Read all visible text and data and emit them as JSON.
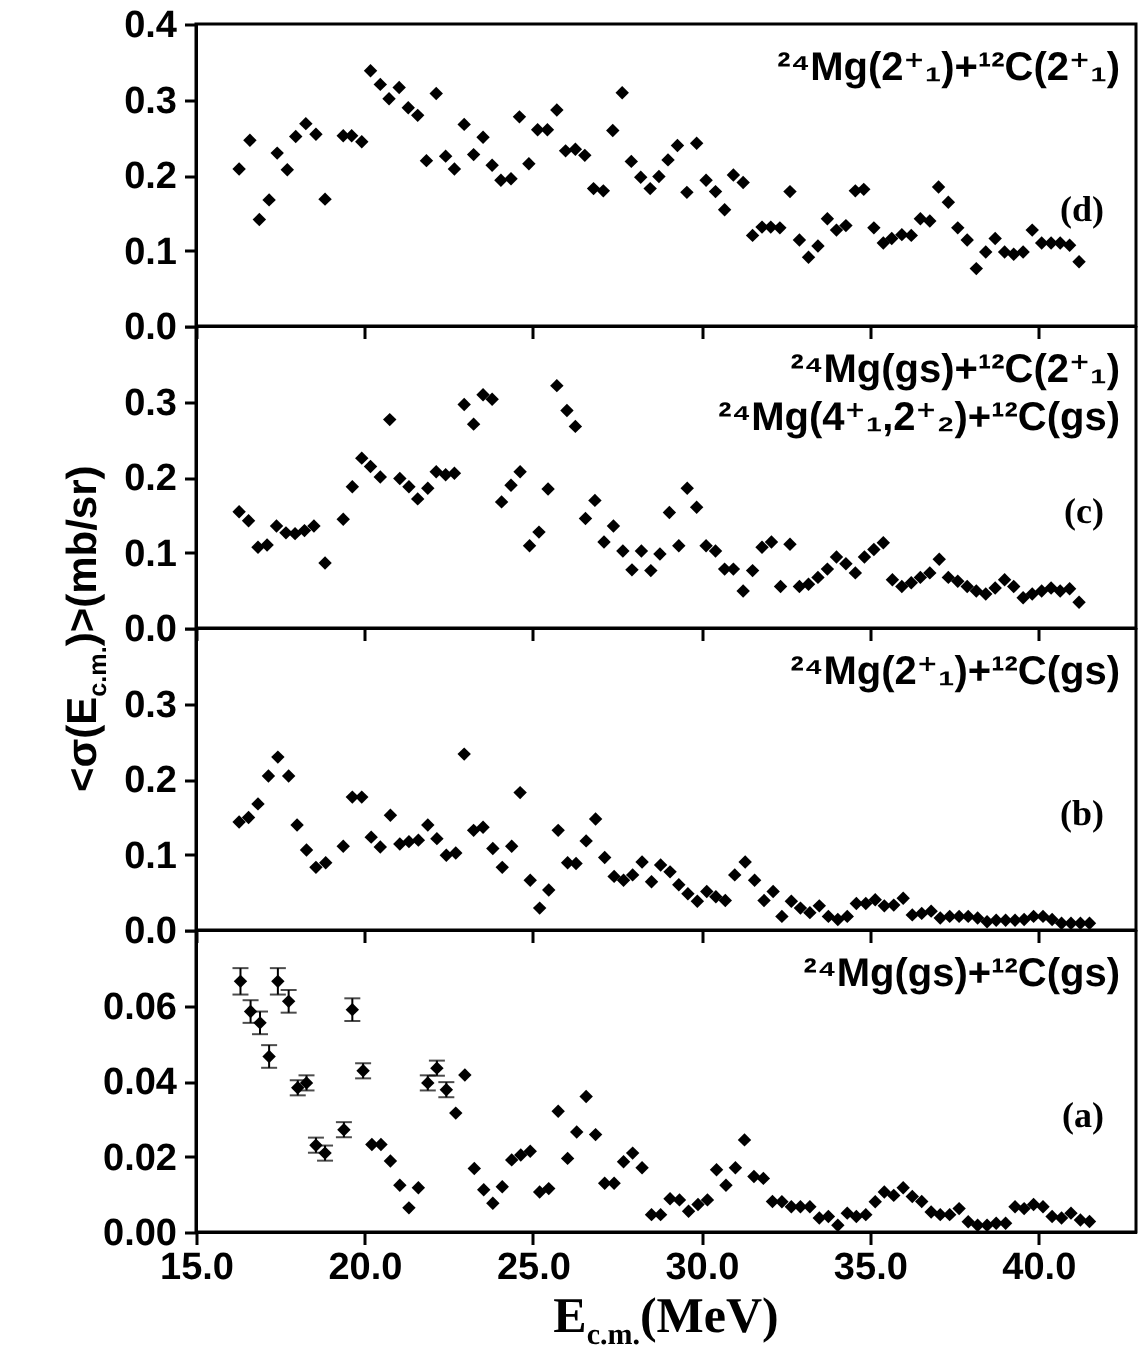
{
  "chart_data": [
    {
      "type": "scatter",
      "color": "#000000",
      "marker": "diamond",
      "tick_labels": "y",
      "annotations": [
        "²⁴Mg(2⁺₁)+¹²C(2⁺₁)",
        "(d)"
      ],
      "xlim": [
        15,
        42.9
      ],
      "xticks": [
        {
          "value": 15,
          "label": null
        },
        {
          "value": 20,
          "label": null
        },
        {
          "value": 25,
          "label": null
        },
        {
          "value": 30,
          "label": null
        },
        {
          "value": 35,
          "label": null
        },
        {
          "value": 40,
          "label": null
        }
      ],
      "ylim": [
        0,
        0.4
      ],
      "yticks": [
        {
          "value": 0,
          "label": "0.0"
        },
        0.1,
        0.2,
        0.3,
        0.4
      ],
      "x": [
        16.28,
        16.6,
        16.88,
        17.17,
        17.41,
        17.71,
        17.96,
        18.26,
        18.56,
        18.83,
        19.37,
        19.62,
        19.92,
        20.18,
        20.47,
        20.73,
        21.03,
        21.3,
        21.58,
        21.84,
        22.13,
        22.41,
        22.67,
        22.96,
        23.24,
        23.52,
        23.79,
        24.05,
        24.35,
        24.6,
        24.88,
        25.14,
        25.43,
        25.71,
        25.97,
        26.26,
        26.54,
        26.8,
        27.09,
        27.37,
        27.65,
        27.92,
        28.2,
        28.48,
        28.74,
        29.01,
        29.29,
        29.57,
        29.86,
        30.14,
        30.42,
        30.69,
        30.95,
        31.24,
        31.52,
        31.8,
        32.06,
        32.33,
        32.63,
        32.91,
        33.18,
        33.46,
        33.74,
        34.01,
        34.29,
        34.57,
        34.82,
        35.12,
        35.4,
        35.65,
        35.95,
        36.23,
        36.5,
        36.78,
        37.04,
        37.33,
        37.61,
        37.89,
        38.16,
        38.44,
        38.72,
        39.0,
        39.27,
        39.55,
        39.82,
        40.1,
        40.38,
        40.65,
        40.93,
        41.21
      ],
      "values": [
        0.208,
        0.246,
        0.141,
        0.167,
        0.229,
        0.207,
        0.251,
        0.268,
        0.254,
        0.168,
        0.252,
        0.252,
        0.244,
        0.338,
        0.32,
        0.301,
        0.316,
        0.289,
        0.279,
        0.219,
        0.308,
        0.225,
        0.208,
        0.267,
        0.227,
        0.25,
        0.213,
        0.193,
        0.195,
        0.277,
        0.215,
        0.26,
        0.26,
        0.286,
        0.232,
        0.234,
        0.226,
        0.182,
        0.179,
        0.259,
        0.309,
        0.218,
        0.197,
        0.182,
        0.198,
        0.22,
        0.239,
        0.177,
        0.242,
        0.193,
        0.178,
        0.154,
        0.2,
        0.19,
        0.12,
        0.131,
        0.131,
        0.13,
        0.178,
        0.114,
        0.091,
        0.106,
        0.142,
        0.127,
        0.133,
        0.179,
        0.181,
        0.13,
        0.11,
        0.116,
        0.121,
        0.12,
        0.142,
        0.139,
        0.184,
        0.164,
        0.13,
        0.114,
        0.076,
        0.098,
        0.116,
        0.098,
        0.095,
        0.098,
        0.127,
        0.11,
        0.11,
        0.11,
        0.107,
        0.085
      ]
    },
    {
      "type": "scatter",
      "color": "#000000",
      "marker": "diamond",
      "tick_labels": "y",
      "ylabel": "<σ(E$_{c.m.}$)>(mb/sr)",
      "annotations": [
        "²⁴Mg(gs)+¹²C(2⁺₁)",
        "²⁴Mg(4⁺₁,2⁺₂)+¹²C(gs)",
        "(c)"
      ],
      "xlim": [
        15,
        42.9
      ],
      "xticks": [
        {
          "value": 15,
          "label": null
        },
        {
          "value": 20,
          "label": null
        },
        {
          "value": 25,
          "label": null
        },
        {
          "value": 30,
          "label": null
        },
        {
          "value": 35,
          "label": null
        },
        {
          "value": 40,
          "label": null
        }
      ],
      "ylim": [
        0,
        0.4
      ],
      "yticks": [
        {
          "value": 0,
          "label": "0.0"
        },
        0.1,
        0.2,
        0.3,
        {
          "value": 0.4,
          "label": null
        }
      ],
      "x": [
        16.28,
        16.56,
        16.84,
        17.11,
        17.39,
        17.67,
        17.94,
        18.22,
        18.5,
        18.83,
        19.37,
        19.64,
        19.92,
        20.18,
        20.47,
        20.75,
        21.05,
        21.32,
        21.58,
        21.88,
        22.13,
        22.41,
        22.67,
        22.96,
        23.24,
        23.52,
        23.79,
        24.07,
        24.35,
        24.62,
        24.9,
        25.18,
        25.45,
        25.71,
        26.01,
        26.26,
        26.56,
        26.84,
        27.11,
        27.39,
        27.67,
        27.94,
        28.22,
        28.5,
        28.77,
        29.05,
        29.33,
        29.58,
        29.86,
        30.14,
        30.42,
        30.69,
        30.95,
        31.24,
        31.52,
        31.8,
        32.08,
        32.35,
        32.63,
        32.91,
        33.18,
        33.46,
        33.74,
        34.01,
        34.29,
        34.57,
        34.84,
        35.12,
        35.4,
        35.67,
        35.95,
        36.23,
        36.5,
        36.78,
        37.06,
        37.33,
        37.61,
        37.89,
        38.16,
        38.44,
        38.72,
        39.0,
        39.27,
        39.55,
        39.82,
        40.1,
        40.38,
        40.65,
        40.93,
        41.21
      ],
      "values": [
        0.154,
        0.142,
        0.107,
        0.11,
        0.135,
        0.126,
        0.125,
        0.129,
        0.135,
        0.086,
        0.144,
        0.187,
        0.225,
        0.214,
        0.2,
        0.276,
        0.198,
        0.187,
        0.171,
        0.185,
        0.207,
        0.203,
        0.205,
        0.296,
        0.27,
        0.309,
        0.303,
        0.167,
        0.189,
        0.207,
        0.109,
        0.127,
        0.184,
        0.321,
        0.288,
        0.267,
        0.145,
        0.169,
        0.114,
        0.135,
        0.102,
        0.077,
        0.102,
        0.076,
        0.098,
        0.153,
        0.109,
        0.185,
        0.16,
        0.109,
        0.102,
        0.078,
        0.078,
        0.049,
        0.076,
        0.107,
        0.114,
        0.055,
        0.111,
        0.055,
        0.058,
        0.067,
        0.078,
        0.094,
        0.085,
        0.073,
        0.094,
        0.104,
        0.113,
        0.064,
        0.055,
        0.06,
        0.067,
        0.073,
        0.091,
        0.067,
        0.062,
        0.055,
        0.049,
        0.045,
        0.053,
        0.064,
        0.055,
        0.04,
        0.045,
        0.049,
        0.053,
        0.049,
        0.052,
        0.034
      ]
    },
    {
      "type": "scatter",
      "color": "#000000",
      "marker": "diamond",
      "tick_labels": "y",
      "annotations": [
        "²⁴Mg(2⁺₁)+¹²C(gs)",
        "(b)"
      ],
      "xlim": [
        15,
        42.9
      ],
      "xticks": [
        {
          "value": 15,
          "label": null
        },
        {
          "value": 20,
          "label": null
        },
        {
          "value": 25,
          "label": null
        },
        {
          "value": 30,
          "label": null
        },
        {
          "value": 35,
          "label": null
        },
        {
          "value": 40,
          "label": null
        }
      ],
      "ylim": [
        0,
        0.4
      ],
      "yticks": [
        {
          "value": 0,
          "label": "0.0"
        },
        0.1,
        0.2,
        0.3,
        {
          "value": 0.4,
          "label": null
        }
      ],
      "x": [
        16.28,
        16.56,
        16.84,
        17.15,
        17.43,
        17.75,
        18.0,
        18.28,
        18.56,
        18.85,
        19.37,
        19.64,
        19.92,
        20.2,
        20.47,
        20.77,
        21.05,
        21.32,
        21.6,
        21.88,
        22.15,
        22.43,
        22.71,
        22.96,
        23.24,
        23.52,
        23.81,
        24.09,
        24.37,
        24.62,
        24.92,
        25.2,
        25.47,
        25.75,
        26.03,
        26.28,
        26.58,
        26.86,
        27.13,
        27.41,
        27.69,
        27.96,
        28.24,
        28.52,
        28.79,
        29.07,
        29.33,
        29.6,
        29.88,
        30.16,
        30.43,
        30.71,
        30.99,
        31.3,
        31.58,
        31.86,
        32.13,
        32.39,
        32.67,
        32.94,
        33.22,
        33.5,
        33.77,
        34.05,
        34.33,
        34.6,
        34.88,
        35.16,
        35.43,
        35.71,
        35.99,
        36.26,
        36.54,
        36.82,
        37.09,
        37.37,
        37.65,
        37.92,
        38.2,
        38.48,
        38.75,
        39.03,
        39.31,
        39.58,
        39.86,
        40.14,
        40.41,
        40.69,
        40.97,
        41.25,
        41.52
      ],
      "values": [
        0.143,
        0.149,
        0.167,
        0.204,
        0.229,
        0.204,
        0.139,
        0.106,
        0.083,
        0.089,
        0.111,
        0.176,
        0.176,
        0.123,
        0.11,
        0.152,
        0.114,
        0.117,
        0.119,
        0.139,
        0.121,
        0.099,
        0.102,
        0.233,
        0.132,
        0.136,
        0.108,
        0.083,
        0.111,
        0.182,
        0.066,
        0.029,
        0.053,
        0.132,
        0.089,
        0.088,
        0.118,
        0.147,
        0.096,
        0.071,
        0.066,
        0.073,
        0.09,
        0.064,
        0.086,
        0.077,
        0.06,
        0.048,
        0.038,
        0.051,
        0.044,
        0.039,
        0.073,
        0.09,
        0.066,
        0.039,
        0.051,
        0.018,
        0.038,
        0.029,
        0.023,
        0.032,
        0.018,
        0.014,
        0.018,
        0.035,
        0.035,
        0.04,
        0.032,
        0.033,
        0.042,
        0.02,
        0.022,
        0.025,
        0.016,
        0.018,
        0.018,
        0.018,
        0.016,
        0.011,
        0.013,
        0.013,
        0.013,
        0.014,
        0.018,
        0.018,
        0.014,
        0.009,
        0.009,
        0.009,
        0.009
      ]
    },
    {
      "type": "scatter",
      "color": "#000000",
      "marker": "diamond",
      "xlabel": "E$_{c.m.}$(MeV)",
      "annotations": [
        "²⁴Mg(gs)+¹²C(gs)",
        "(a)"
      ],
      "xlim": [
        15,
        42.9
      ],
      "xticks": [
        {
          "value": 15,
          "label": "15.0"
        },
        {
          "value": 20,
          "label": "20.0"
        },
        {
          "value": 25,
          "label": "25.0"
        },
        {
          "value": 30,
          "label": "30.0"
        },
        {
          "value": 35,
          "label": "35.0"
        },
        {
          "value": 40,
          "label": "40.0"
        }
      ],
      "ylim": [
        0,
        0.08
      ],
      "yticks": [
        {
          "value": 0,
          "label": "0.00"
        },
        {
          "value": 0.02,
          "label": "0.02"
        },
        {
          "value": 0.04,
          "label": "0.04"
        },
        {
          "value": 0.06,
          "label": "0.06"
        },
        {
          "value": 0.08,
          "label": null
        }
      ],
      "x": [
        16.32,
        16.62,
        16.9,
        17.17,
        17.43,
        17.75,
        18.02,
        18.28,
        18.56,
        18.83,
        19.39,
        19.64,
        19.96,
        20.22,
        20.49,
        20.77,
        21.05,
        21.32,
        21.6,
        21.88,
        22.15,
        22.43,
        22.71,
        22.98,
        23.26,
        23.54,
        23.81,
        24.09,
        24.37,
        24.64,
        24.92,
        25.2,
        25.47,
        25.75,
        26.03,
        26.3,
        26.58,
        26.86,
        27.13,
        27.41,
        27.69,
        27.96,
        28.24,
        28.52,
        28.79,
        29.07,
        29.35,
        29.62,
        29.9,
        30.18,
        30.45,
        30.73,
        31.01,
        31.28,
        31.56,
        31.84,
        32.11,
        32.39,
        32.67,
        32.94,
        33.22,
        33.5,
        33.77,
        34.05,
        34.33,
        34.6,
        34.88,
        35.16,
        35.43,
        35.71,
        35.99,
        36.26,
        36.54,
        36.82,
        37.09,
        37.37,
        37.65,
        37.92,
        38.2,
        38.48,
        38.75,
        39.03,
        39.31,
        39.58,
        39.86,
        40.14,
        40.41,
        40.69,
        40.97,
        41.25,
        41.52
      ],
      "values": [
        0.0664,
        0.0584,
        0.0554,
        0.0465,
        0.0664,
        0.0611,
        0.0382,
        0.0395,
        0.023,
        0.0209,
        0.0271,
        0.0589,
        0.0427,
        0.0232,
        0.0232,
        0.0188,
        0.0124,
        0.0064,
        0.0117,
        0.0395,
        0.0434,
        0.0377,
        0.0315,
        0.0416,
        0.0168,
        0.0112,
        0.0076,
        0.012,
        0.0191,
        0.0204,
        0.0214,
        0.0106,
        0.0115,
        0.032,
        0.0195,
        0.0265,
        0.0359,
        0.0258,
        0.0129,
        0.0129,
        0.0186,
        0.0209,
        0.017,
        0.0046,
        0.0046,
        0.0088,
        0.0085,
        0.0055,
        0.0073,
        0.0085,
        0.0165,
        0.0124,
        0.017,
        0.0244,
        0.0147,
        0.0142,
        0.0081,
        0.008,
        0.0067,
        0.0067,
        0.0067,
        0.0037,
        0.0041,
        0.0018,
        0.005,
        0.0041,
        0.0046,
        0.008,
        0.0106,
        0.0097,
        0.0117,
        0.0094,
        0.0081,
        0.0053,
        0.0046,
        0.0046,
        0.0062,
        0.0027,
        0.0018,
        0.0018,
        0.0023,
        0.0023,
        0.0067,
        0.0062,
        0.0073,
        0.0067,
        0.0041,
        0.0037,
        0.005,
        0.0032,
        0.0028
      ],
      "errors": [
        0.0035,
        0.003,
        0.003,
        0.003,
        0.0035,
        0.003,
        0.002,
        0.002,
        0.002,
        0.002,
        0.002,
        0.003,
        0.002,
        null,
        null,
        null,
        null,
        null,
        null,
        0.002,
        0.002,
        0.002,
        null,
        null,
        null,
        null,
        null,
        null,
        null,
        null,
        null,
        null,
        null,
        null,
        null,
        null,
        null,
        null,
        null,
        null,
        null,
        null,
        null,
        null,
        null,
        null,
        null,
        null,
        null,
        null,
        null,
        null,
        null,
        null,
        null,
        null,
        null,
        null,
        null,
        null,
        null,
        null,
        null,
        null,
        null,
        null,
        null,
        null,
        null,
        null,
        null,
        null,
        null,
        null,
        null,
        null,
        null,
        null,
        null,
        null,
        null,
        null,
        null,
        null,
        null,
        null,
        null,
        null,
        null,
        null,
        null
      ]
    }
  ]
}
